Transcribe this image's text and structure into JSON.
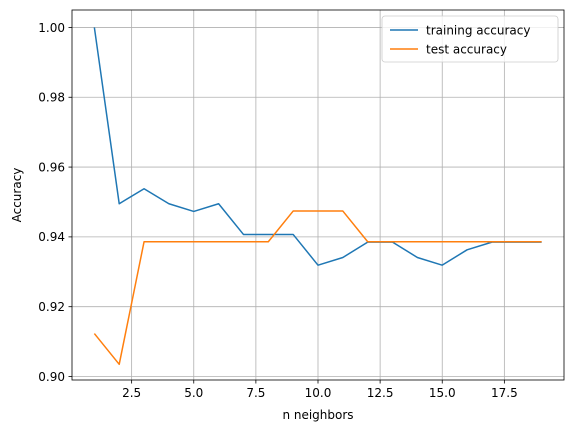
{
  "chart_data": {
    "type": "line",
    "title": "",
    "xlabel": "n neighbors",
    "ylabel": "Accuracy",
    "xlim": [
      0.1,
      19.9
    ],
    "ylim": [
      0.899,
      1.005
    ],
    "xticks": [
      2.5,
      5.0,
      7.5,
      10.0,
      12.5,
      15.0,
      17.5
    ],
    "xtick_labels": [
      "2.5",
      "5.0",
      "7.5",
      "10.0",
      "12.5",
      "15.0",
      "17.5"
    ],
    "yticks": [
      0.9,
      0.92,
      0.94,
      0.96,
      0.98,
      1.0
    ],
    "ytick_labels": [
      "0.90",
      "0.92",
      "0.94",
      "0.96",
      "0.98",
      "1.00"
    ],
    "grid": true,
    "legend_position": "top-right",
    "x": [
      1,
      2,
      3,
      4,
      5,
      6,
      7,
      8,
      9,
      10,
      11,
      12,
      13,
      14,
      15,
      16,
      17,
      18,
      19
    ],
    "series": [
      {
        "name": "training accuracy",
        "color": "#1f77b4",
        "values": [
          1.0,
          0.9495,
          0.9538,
          0.9495,
          0.9473,
          0.9495,
          0.9407,
          0.9407,
          0.9407,
          0.9319,
          0.9341,
          0.9385,
          0.9385,
          0.9341,
          0.9319,
          0.9363,
          0.9385,
          0.9385,
          0.9385
        ]
      },
      {
        "name": "test accuracy",
        "color": "#ff7f0e",
        "values": [
          0.9123,
          0.9035,
          0.9386,
          0.9386,
          0.9386,
          0.9386,
          0.9386,
          0.9386,
          0.9474,
          0.9474,
          0.9474,
          0.9386,
          0.9386,
          0.9386,
          0.9386,
          0.9386,
          0.9386,
          0.9386,
          0.9386
        ]
      }
    ]
  }
}
